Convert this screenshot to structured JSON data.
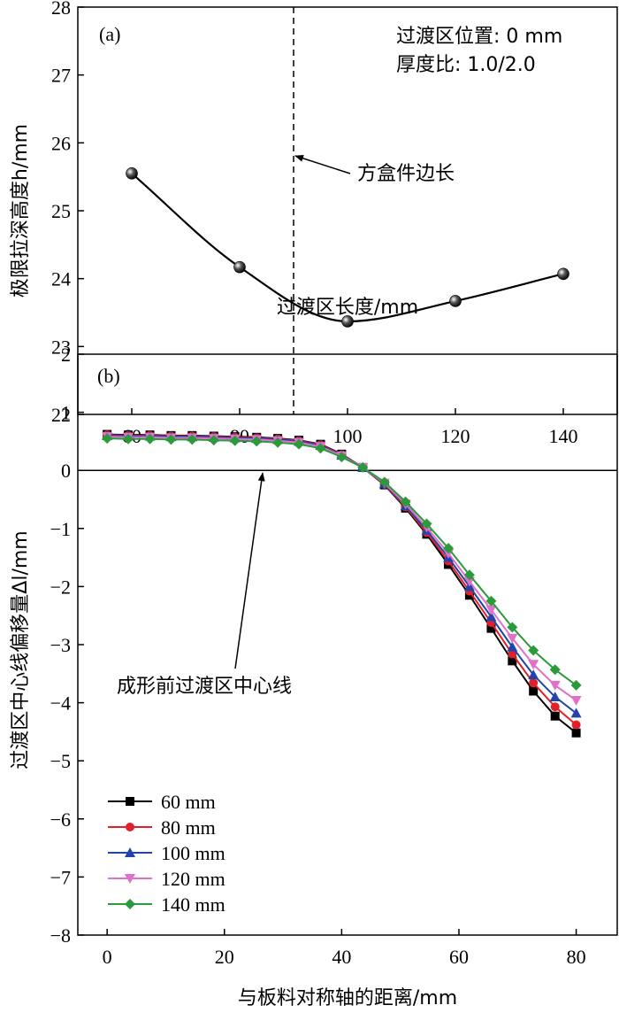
{
  "chart_data": [
    {
      "type": "line",
      "panel_label": "(a)",
      "xlabel": "过渡区长度/mm",
      "ylabel": "极限拉深高度h/mm",
      "xlim": [
        50,
        150
      ],
      "ylim": [
        22,
        28
      ],
      "xticks": [
        "60",
        "80",
        "100",
        "120",
        "140"
      ],
      "yticks": [
        "22",
        "23",
        "24",
        "25",
        "26",
        "27",
        "28"
      ],
      "x": [
        60,
        80,
        100,
        120,
        140
      ],
      "series": [
        {
          "values": [
            25.55,
            24.17,
            23.37,
            23.67,
            24.07
          ],
          "color": "#000000"
        }
      ],
      "annotations": {
        "info_line1": "过渡区位置: 0 mm",
        "info_line2": "厚度比: 1.0/2.0",
        "vline_x": 90,
        "vline_label": "方盒件边长"
      }
    },
    {
      "type": "line",
      "panel_label": "(b)",
      "xlabel": "与板料对称轴的距离/mm",
      "ylabel": "过渡区中心线偏移量Δl/mm",
      "xlim": [
        -5,
        87
      ],
      "ylim": [
        -8,
        2
      ],
      "xticks": [
        "0",
        "20",
        "40",
        "60",
        "80"
      ],
      "yticks": [
        "2",
        "1",
        "0",
        "−1",
        "−2",
        "−3",
        "−4",
        "−5",
        "−6",
        "−7",
        "−8"
      ],
      "x": [
        0,
        3.6,
        7.3,
        10.9,
        14.5,
        18.2,
        21.8,
        25.5,
        29.1,
        32.7,
        36.4,
        40,
        43.6,
        47.3,
        50.9,
        54.5,
        58.2,
        61.8,
        65.5,
        69.1,
        72.7,
        76.4,
        80
      ],
      "hline_label": "成形前过渡区中心线",
      "series": [
        {
          "name": "60 mm",
          "color": "#000000",
          "marker": "square",
          "values": [
            0.62,
            0.61,
            0.61,
            0.6,
            0.6,
            0.59,
            0.58,
            0.57,
            0.55,
            0.52,
            0.45,
            0.28,
            0.05,
            -0.25,
            -0.65,
            -1.1,
            -1.62,
            -2.15,
            -2.72,
            -3.28,
            -3.8,
            -4.23,
            -4.52
          ]
        },
        {
          "name": "80 mm",
          "color": "#e0202a",
          "marker": "circle",
          "values": [
            0.61,
            0.6,
            0.6,
            0.59,
            0.59,
            0.58,
            0.57,
            0.56,
            0.54,
            0.51,
            0.44,
            0.27,
            0.05,
            -0.24,
            -0.63,
            -1.07,
            -1.56,
            -2.08,
            -2.62,
            -3.16,
            -3.66,
            -4.07,
            -4.38
          ]
        },
        {
          "name": "100 mm",
          "color": "#2244aa",
          "marker": "triangle-up",
          "values": [
            0.6,
            0.59,
            0.59,
            0.58,
            0.58,
            0.57,
            0.56,
            0.55,
            0.53,
            0.5,
            0.43,
            0.26,
            0.05,
            -0.23,
            -0.61,
            -1.03,
            -1.5,
            -2.0,
            -2.52,
            -3.04,
            -3.52,
            -3.9,
            -4.18
          ]
        },
        {
          "name": "120 mm",
          "color": "#e070c8",
          "marker": "triangle-down",
          "values": [
            0.58,
            0.57,
            0.57,
            0.56,
            0.56,
            0.55,
            0.54,
            0.53,
            0.51,
            0.48,
            0.41,
            0.25,
            0.05,
            -0.22,
            -0.58,
            -0.98,
            -1.43,
            -1.91,
            -2.4,
            -2.89,
            -3.34,
            -3.7,
            -3.96
          ]
        },
        {
          "name": "140 mm",
          "color": "#2a9a3a",
          "marker": "diamond",
          "values": [
            0.55,
            0.54,
            0.54,
            0.53,
            0.53,
            0.52,
            0.51,
            0.5,
            0.48,
            0.45,
            0.38,
            0.23,
            0.05,
            -0.2,
            -0.54,
            -0.92,
            -1.34,
            -1.8,
            -2.25,
            -2.7,
            -3.1,
            -3.43,
            -3.7
          ]
        }
      ]
    }
  ]
}
